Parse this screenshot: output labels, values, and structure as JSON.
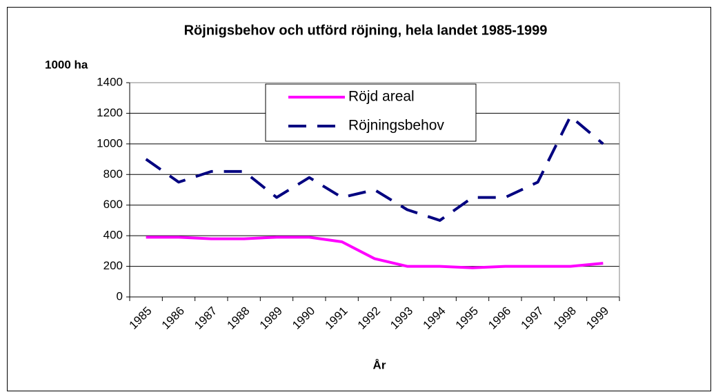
{
  "chart_data": {
    "type": "line",
    "title": "Röjnigsbehov och utförd röjning, hela landet 1985-1999",
    "y_label": "1000 ha",
    "x_label": "År",
    "categories": [
      "1985",
      "1986",
      "1987",
      "1988",
      "1989",
      "1990",
      "1991",
      "1992",
      "1993",
      "1994",
      "1995",
      "1996",
      "1997",
      "1998",
      "1999"
    ],
    "series": [
      {
        "name": "Röjd areal",
        "color": "#ff00ff",
        "values": [
          390,
          390,
          380,
          380,
          390,
          390,
          360,
          250,
          200,
          200,
          190,
          200,
          200,
          200,
          220
        ]
      },
      {
        "name": "Röjningsbehov",
        "color": "#000080",
        "values": [
          900,
          750,
          820,
          820,
          650,
          780,
          650,
          700,
          570,
          500,
          650,
          650,
          750,
          1180,
          1000
        ]
      }
    ],
    "ylim": [
      0,
      1400
    ],
    "yticks": [
      0,
      200,
      400,
      600,
      800,
      1000,
      1200,
      1400
    ],
    "grid": true
  }
}
